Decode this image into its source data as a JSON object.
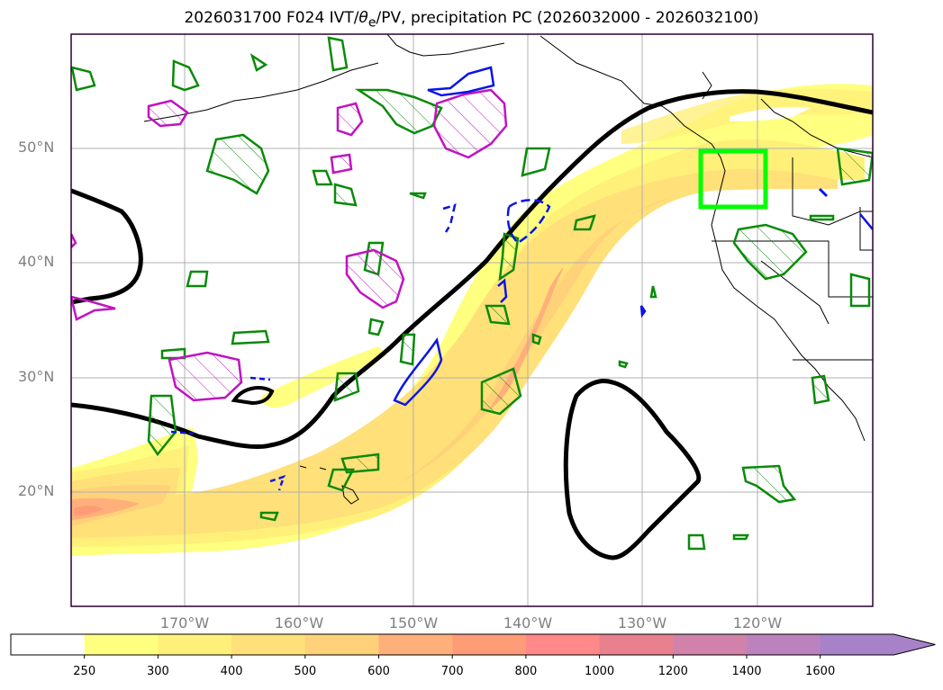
{
  "title": {
    "prefix": "2026031700 F024 IVT/",
    "theta": "θ",
    "theta_sub": "e",
    "suffix": "/PV, precipitation PC (2026032000 - 2026032100)"
  },
  "axes": {
    "lat_labels": [
      "50°N",
      "40°N",
      "30°N",
      "20°N"
    ],
    "lon_labels": [
      "170°W",
      "160°W",
      "150°W",
      "140°W",
      "130°W",
      "120°W"
    ]
  },
  "colorbar": {
    "levels": [
      "250",
      "300",
      "400",
      "500",
      "600",
      "700",
      "800",
      "1000",
      "1200",
      "1400",
      "1600"
    ],
    "colors": [
      "#ffffff",
      "#ffff80",
      "#fff07a",
      "#ffe079",
      "#ffd27a",
      "#ffb07a",
      "#ff9c78",
      "#ff8888",
      "#e8808e",
      "#d082aa",
      "#bc82be",
      "#a882c8"
    ],
    "extend": "max"
  },
  "colors": {
    "ivt_fill": "#ffff80",
    "pv_contour": "#000000",
    "theta_green": "#0a8a0a",
    "theta_blue": "#0a14e6",
    "magenta": "#c014c0",
    "target_box": "#00ff00"
  }
}
